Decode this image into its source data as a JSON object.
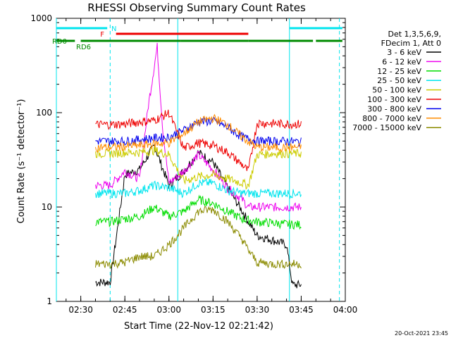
{
  "chart_data": {
    "type": "line",
    "title": "RHESSI Observing Summary Count Rates",
    "xlabel": "Start Time (22-Nov-12 02:21:42)",
    "ylabel": "Count Rate (s⁻¹ detector⁻¹)",
    "yscale": "log",
    "xlim": [
      "02:21:42",
      "04:00"
    ],
    "ylim": [
      1,
      1000
    ],
    "x_ticks": [
      "02:30",
      "02:45",
      "03:00",
      "03:15",
      "03:30",
      "03:45",
      "04:00"
    ],
    "y_ticks": [
      "1",
      "10",
      "100",
      "1000"
    ],
    "legend_header": [
      "Det 1,3,5,6,9,",
      "FDecim 1, Att 0"
    ],
    "legend_position": "right",
    "footer": "20-Oct-2021 23:45",
    "flags": [
      {
        "name": "N",
        "color": "#00e5ee",
        "segments": [
          [
            "02:21:42",
            "02:39"
          ],
          [
            "03:41",
            "03:59"
          ]
        ]
      },
      {
        "name": "F",
        "color": "#ee0000",
        "segments": [
          [
            "02:42",
            "03:27"
          ]
        ]
      },
      {
        "name": "RD0",
        "color": "#008b00",
        "segments": [
          [
            "02:21:42",
            "02:28"
          ],
          [
            "02:30",
            "03:04"
          ],
          [
            "03:04",
            "03:27"
          ],
          [
            "03:27",
            "03:49"
          ],
          [
            "03:50",
            "03:59"
          ]
        ]
      },
      {
        "name": "RD6",
        "color": "#008b00",
        "segments": []
      }
    ],
    "vertical_lines": [
      {
        "time": "02:21:42",
        "style": "solid",
        "color": "#00e5ee"
      },
      {
        "time": "02:40",
        "style": "dashed",
        "color": "#00e5ee"
      },
      {
        "time": "03:03",
        "style": "solid",
        "color": "#00e5ee"
      },
      {
        "time": "03:41",
        "style": "solid",
        "color": "#00e5ee"
      },
      {
        "time": "03:58",
        "style": "dashed",
        "color": "#00e5ee"
      }
    ],
    "series": [
      {
        "name": "3 - 6 keV",
        "color": "#000000",
        "points": [
          [
            "02:35",
            "1.6"
          ],
          [
            "02:40",
            "1.6"
          ],
          [
            "02:45",
            "22"
          ],
          [
            "02:50",
            "25"
          ],
          [
            "02:55",
            "45"
          ],
          [
            "03:00",
            "17"
          ],
          [
            "03:05",
            "24"
          ],
          [
            "03:10",
            "38"
          ],
          [
            "03:15",
            "30"
          ],
          [
            "03:20",
            "16"
          ],
          [
            "03:25",
            "9"
          ],
          [
            "03:27",
            "7"
          ],
          [
            "03:30",
            "5"
          ],
          [
            "03:35",
            "4.5"
          ],
          [
            "03:40",
            "4"
          ],
          [
            "03:42",
            "1.5"
          ],
          [
            "03:45",
            "1.5"
          ]
        ]
      },
      {
        "name": "6 - 12 keV",
        "color": "#ee00ee",
        "points": [
          [
            "02:35",
            "17"
          ],
          [
            "02:40",
            "17"
          ],
          [
            "02:45",
            "24"
          ],
          [
            "02:50",
            "20"
          ],
          [
            "02:53",
            "120"
          ],
          [
            "02:56",
            "500"
          ],
          [
            "02:58",
            "60"
          ],
          [
            "03:00",
            "18"
          ],
          [
            "03:05",
            "24"
          ],
          [
            "03:10",
            "36"
          ],
          [
            "03:15",
            "25"
          ],
          [
            "03:20",
            "16"
          ],
          [
            "03:25",
            "12"
          ],
          [
            "03:27",
            "10"
          ],
          [
            "03:30",
            "10"
          ],
          [
            "03:35",
            "10"
          ],
          [
            "03:40",
            "10"
          ],
          [
            "03:45",
            "10"
          ]
        ]
      },
      {
        "name": "12 - 25 keV",
        "color": "#00dd00",
        "points": [
          [
            "02:35",
            "7"
          ],
          [
            "02:40",
            "7"
          ],
          [
            "02:45",
            "7.5"
          ],
          [
            "02:50",
            "8"
          ],
          [
            "02:55",
            "10"
          ],
          [
            "03:00",
            "8"
          ],
          [
            "03:05",
            "9"
          ],
          [
            "03:10",
            "12"
          ],
          [
            "03:15",
            "11"
          ],
          [
            "03:20",
            "9"
          ],
          [
            "03:25",
            "7.5"
          ],
          [
            "03:30",
            "7"
          ],
          [
            "03:35",
            "6.8"
          ],
          [
            "03:40",
            "6.6"
          ],
          [
            "03:45",
            "6.5"
          ]
        ]
      },
      {
        "name": "25 - 50 keV",
        "color": "#00e5ee",
        "points": [
          [
            "02:35",
            "14"
          ],
          [
            "02:40",
            "14"
          ],
          [
            "02:45",
            "14"
          ],
          [
            "02:50",
            "15"
          ],
          [
            "02:55",
            "17"
          ],
          [
            "03:00",
            "16"
          ],
          [
            "03:05",
            "14"
          ],
          [
            "03:10",
            "18"
          ],
          [
            "03:15",
            "18"
          ],
          [
            "03:20",
            "15"
          ],
          [
            "03:25",
            "14"
          ],
          [
            "03:30",
            "14"
          ],
          [
            "03:35",
            "14"
          ],
          [
            "03:40",
            "14"
          ],
          [
            "03:45",
            "14"
          ]
        ]
      },
      {
        "name": "50 - 100 keV",
        "color": "#cccc00",
        "points": [
          [
            "02:35",
            "37"
          ],
          [
            "02:40",
            "37"
          ],
          [
            "02:45",
            "38"
          ],
          [
            "02:50",
            "38"
          ],
          [
            "02:55",
            "40"
          ],
          [
            "03:00",
            "36"
          ],
          [
            "03:05",
            "19"
          ],
          [
            "03:10",
            "21"
          ],
          [
            "03:15",
            "22"
          ],
          [
            "03:20",
            "20"
          ],
          [
            "03:25",
            "18"
          ],
          [
            "03:27",
            "17"
          ],
          [
            "03:30",
            "36"
          ],
          [
            "03:35",
            "37"
          ],
          [
            "03:40",
            "37"
          ],
          [
            "03:45",
            "37"
          ]
        ]
      },
      {
        "name": "100 - 300 keV",
        "color": "#ee0000",
        "points": [
          [
            "02:35",
            "75"
          ],
          [
            "02:40",
            "75"
          ],
          [
            "02:45",
            "76"
          ],
          [
            "02:50",
            "80"
          ],
          [
            "02:55",
            "83"
          ],
          [
            "03:00",
            "100"
          ],
          [
            "03:05",
            "42"
          ],
          [
            "03:10",
            "48"
          ],
          [
            "03:15",
            "45"
          ],
          [
            "03:20",
            "38"
          ],
          [
            "03:25",
            "28"
          ],
          [
            "03:27",
            "24"
          ],
          [
            "03:30",
            "78"
          ],
          [
            "03:35",
            "77"
          ],
          [
            "03:40",
            "76"
          ],
          [
            "03:45",
            "76"
          ]
        ]
      },
      {
        "name": "300 - 800 keV",
        "color": "#0000ee",
        "points": [
          [
            "02:35",
            "50"
          ],
          [
            "02:40",
            "50"
          ],
          [
            "02:45",
            "50"
          ],
          [
            "02:50",
            "52"
          ],
          [
            "02:55",
            "54"
          ],
          [
            "03:00",
            "55"
          ],
          [
            "03:05",
            "65"
          ],
          [
            "03:10",
            "80"
          ],
          [
            "03:15",
            "82"
          ],
          [
            "03:20",
            "70"
          ],
          [
            "03:25",
            "55"
          ],
          [
            "03:30",
            "50"
          ],
          [
            "03:35",
            "50"
          ],
          [
            "03:40",
            "50"
          ],
          [
            "03:45",
            "49"
          ]
        ]
      },
      {
        "name": "800 - 7000 keV",
        "color": "#ff8c00",
        "points": [
          [
            "02:35",
            "43"
          ],
          [
            "02:40",
            "43"
          ],
          [
            "02:45",
            "44"
          ],
          [
            "02:50",
            "45"
          ],
          [
            "02:55",
            "47"
          ],
          [
            "03:00",
            "48"
          ],
          [
            "03:05",
            "60"
          ],
          [
            "03:10",
            "80"
          ],
          [
            "03:15",
            "88"
          ],
          [
            "03:20",
            "75"
          ],
          [
            "03:25",
            "55"
          ],
          [
            "03:30",
            "43"
          ],
          [
            "03:35",
            "43"
          ],
          [
            "03:40",
            "43"
          ],
          [
            "03:45",
            "43"
          ]
        ]
      },
      {
        "name": "7000 - 15000 keV",
        "color": "#8b8b00",
        "points": [
          [
            "02:35",
            "2.5"
          ],
          [
            "02:40",
            "2.5"
          ],
          [
            "02:45",
            "2.6"
          ],
          [
            "02:50",
            "3"
          ],
          [
            "02:55",
            "3"
          ],
          [
            "03:00",
            "4"
          ],
          [
            "03:05",
            "6"
          ],
          [
            "03:10",
            "9"
          ],
          [
            "03:15",
            "9.5"
          ],
          [
            "03:20",
            "7"
          ],
          [
            "03:25",
            "4.5"
          ],
          [
            "03:27",
            "3.5"
          ],
          [
            "03:30",
            "2.6"
          ],
          [
            "03:35",
            "2.5"
          ],
          [
            "03:40",
            "2.5"
          ],
          [
            "03:45",
            "2.5"
          ]
        ]
      }
    ]
  }
}
